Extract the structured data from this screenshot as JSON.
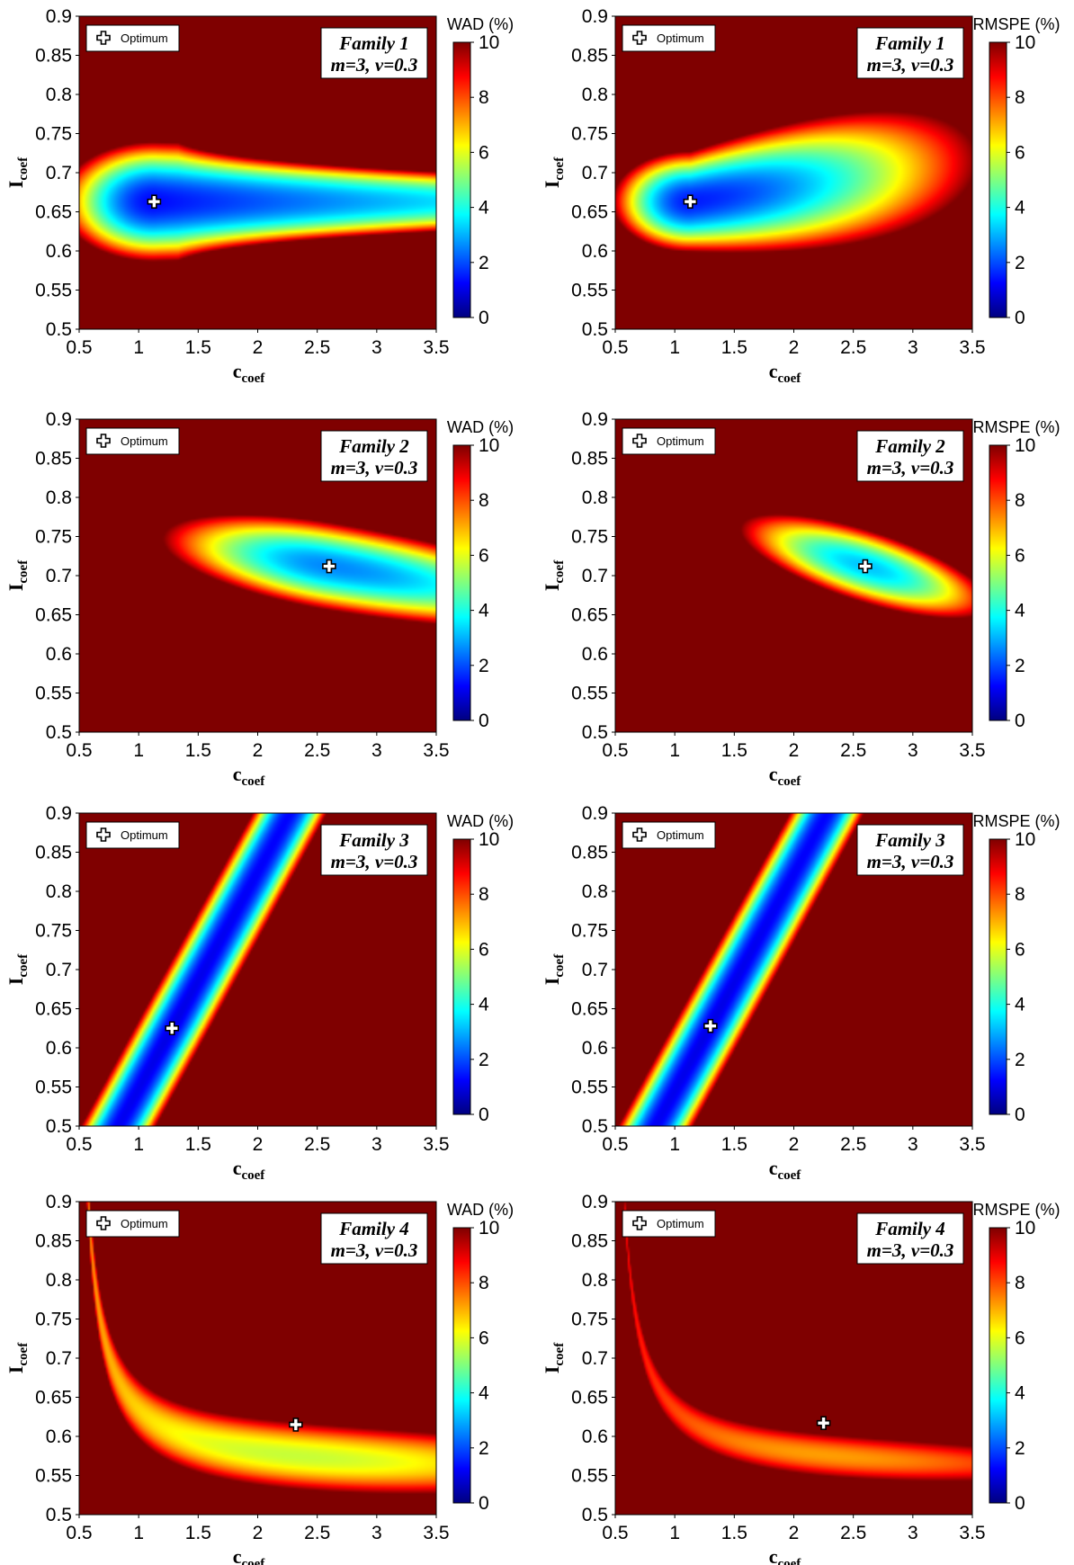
{
  "legend_label": "Optimum",
  "chart_data": [
    {
      "type": "heatmap",
      "family": "Family 1",
      "params": "m=3, v=0.3",
      "colorbar_title": "WAD (%)",
      "colorbar_ticks": [
        "0",
        "2",
        "4",
        "6",
        "8",
        "10"
      ],
      "colorbar_range": [
        0,
        10
      ],
      "xlabel": "c",
      "xlabel_sub": "coef",
      "ylabel": "I",
      "ylabel_sub": "coef",
      "xlim": [
        0.5,
        3.5
      ],
      "ylim": [
        0.5,
        0.9
      ],
      "xticks": [
        "0.5",
        "1",
        "1.5",
        "2",
        "2.5",
        "3",
        "3.5"
      ],
      "yticks": [
        "0.5",
        "0.55",
        "0.6",
        "0.65",
        "0.7",
        "0.75",
        "0.8",
        "0.85",
        "0.9"
      ],
      "optimum": {
        "x": 1.13,
        "y": 0.663
      },
      "valley": "ridge_h",
      "legend": "top-left",
      "cmap": [
        "#00007f",
        "#0000ff",
        "#007fff",
        "#00ffff",
        "#7fff7f",
        "#ffff00",
        "#ff7f00",
        "#ff0000",
        "#7f0000"
      ]
    },
    {
      "type": "heatmap",
      "family": "Family 1",
      "params": "m=3, v=0.3",
      "colorbar_title": "RMSPE (%)",
      "colorbar_ticks": [
        "0",
        "2",
        "4",
        "6",
        "8",
        "10"
      ],
      "colorbar_range": [
        0,
        10
      ],
      "xlabel": "c",
      "xlabel_sub": "coef",
      "ylabel": "I",
      "ylabel_sub": "coef",
      "xlim": [
        0.5,
        3.5
      ],
      "ylim": [
        0.5,
        0.9
      ],
      "xticks": [
        "0.5",
        "1",
        "1.5",
        "2",
        "2.5",
        "3",
        "3.5"
      ],
      "yticks": [
        "0.5",
        "0.55",
        "0.6",
        "0.65",
        "0.7",
        "0.75",
        "0.8",
        "0.85",
        "0.9"
      ],
      "optimum": {
        "x": 1.13,
        "y": 0.663
      },
      "valley": "teardrop",
      "legend": "top-left",
      "cmap": [
        "#00007f",
        "#0000ff",
        "#007fff",
        "#00ffff",
        "#7fff7f",
        "#ffff00",
        "#ff7f00",
        "#ff0000",
        "#7f0000"
      ]
    },
    {
      "type": "heatmap",
      "family": "Family 2",
      "params": "m=3, v=0.3",
      "colorbar_title": "WAD (%)",
      "colorbar_ticks": [
        "0",
        "2",
        "4",
        "6",
        "8",
        "10"
      ],
      "colorbar_range": [
        0,
        10
      ],
      "xlabel": "c",
      "xlabel_sub": "coef",
      "ylabel": "I",
      "ylabel_sub": "coef",
      "xlim": [
        0.5,
        3.5
      ],
      "ylim": [
        0.5,
        0.9
      ],
      "xticks": [
        "0.5",
        "1",
        "1.5",
        "2",
        "2.5",
        "3",
        "3.5"
      ],
      "yticks": [
        "0.5",
        "0.55",
        "0.6",
        "0.65",
        "0.7",
        "0.75",
        "0.8",
        "0.85",
        "0.9"
      ],
      "optimum": {
        "x": 2.6,
        "y": 0.712
      },
      "valley": "ellipse_wide",
      "legend": "top-left",
      "cmap": [
        "#00007f",
        "#0000ff",
        "#007fff",
        "#00ffff",
        "#7fff7f",
        "#ffff00",
        "#ff7f00",
        "#ff0000",
        "#7f0000"
      ]
    },
    {
      "type": "heatmap",
      "family": "Family 2",
      "params": "m=3, v=0.3",
      "colorbar_title": "RMSPE (%)",
      "colorbar_ticks": [
        "0",
        "2",
        "4",
        "6",
        "8",
        "10"
      ],
      "colorbar_range": [
        0,
        10
      ],
      "xlabel": "c",
      "xlabel_sub": "coef",
      "ylabel": "I",
      "ylabel_sub": "coef",
      "xlim": [
        0.5,
        3.5
      ],
      "ylim": [
        0.5,
        0.9
      ],
      "xticks": [
        "0.5",
        "1",
        "1.5",
        "2",
        "2.5",
        "3",
        "3.5"
      ],
      "yticks": [
        "0.5",
        "0.55",
        "0.6",
        "0.65",
        "0.7",
        "0.75",
        "0.8",
        "0.85",
        "0.9"
      ],
      "optimum": {
        "x": 2.6,
        "y": 0.712
      },
      "valley": "ellipse_small",
      "legend": "top-left",
      "cmap": [
        "#00007f",
        "#0000ff",
        "#007fff",
        "#00ffff",
        "#7fff7f",
        "#ffff00",
        "#ff7f00",
        "#ff0000",
        "#7f0000"
      ]
    },
    {
      "type": "heatmap",
      "family": "Family 3",
      "params": "m=3, v=0.3",
      "colorbar_title": "WAD (%)",
      "colorbar_ticks": [
        "0",
        "2",
        "4",
        "6",
        "8",
        "10"
      ],
      "colorbar_range": [
        0,
        10
      ],
      "xlabel": "c",
      "xlabel_sub": "coef",
      "ylabel": "I",
      "ylabel_sub": "coef",
      "xlim": [
        0.5,
        3.5
      ],
      "ylim": [
        0.5,
        0.9
      ],
      "xticks": [
        "0.5",
        "1",
        "1.5",
        "2",
        "2.5",
        "3",
        "3.5"
      ],
      "yticks": [
        "0.5",
        "0.55",
        "0.6",
        "0.65",
        "0.7",
        "0.75",
        "0.8",
        "0.85",
        "0.9"
      ],
      "optimum": {
        "x": 1.28,
        "y": 0.625
      },
      "valley": "band_diag",
      "legend": "top-left",
      "cmap": [
        "#00007f",
        "#0000ff",
        "#007fff",
        "#00ffff",
        "#7fff7f",
        "#ffff00",
        "#ff7f00",
        "#ff0000",
        "#7f0000"
      ]
    },
    {
      "type": "heatmap",
      "family": "Family 3",
      "params": "m=3, v=0.3",
      "colorbar_title": "RMSPE (%)",
      "colorbar_ticks": [
        "0",
        "2",
        "4",
        "6",
        "8",
        "10"
      ],
      "colorbar_range": [
        0,
        10
      ],
      "xlabel": "c",
      "xlabel_sub": "coef",
      "ylabel": "I",
      "ylabel_sub": "coef",
      "xlim": [
        0.5,
        3.5
      ],
      "ylim": [
        0.5,
        0.9
      ],
      "xticks": [
        "0.5",
        "1",
        "1.5",
        "2",
        "2.5",
        "3",
        "3.5"
      ],
      "yticks": [
        "0.5",
        "0.55",
        "0.6",
        "0.65",
        "0.7",
        "0.75",
        "0.8",
        "0.85",
        "0.9"
      ],
      "optimum": {
        "x": 1.3,
        "y": 0.628
      },
      "valley": "band_diag",
      "legend": "top-left",
      "cmap": [
        "#00007f",
        "#0000ff",
        "#007fff",
        "#00ffff",
        "#7fff7f",
        "#ffff00",
        "#ff7f00",
        "#ff0000",
        "#7f0000"
      ]
    },
    {
      "type": "heatmap",
      "family": "Family 4",
      "params": "m=3, v=0.3",
      "colorbar_title": "WAD (%)",
      "colorbar_ticks": [
        "0",
        "2",
        "4",
        "6",
        "8",
        "10"
      ],
      "colorbar_range": [
        0,
        10
      ],
      "xlabel": "c",
      "xlabel_sub": "coef",
      "ylabel": "I",
      "ylabel_sub": "coef",
      "xlim": [
        0.5,
        3.5
      ],
      "ylim": [
        0.5,
        0.9
      ],
      "xticks": [
        "0.5",
        "1",
        "1.5",
        "2",
        "2.5",
        "3",
        "3.5"
      ],
      "yticks": [
        "0.5",
        "0.55",
        "0.6",
        "0.65",
        "0.7",
        "0.75",
        "0.8",
        "0.85",
        "0.9"
      ],
      "optimum": {
        "x": 2.32,
        "y": 0.615
      },
      "valley": "hyperbola_wad",
      "legend": "top-left",
      "cmap": [
        "#00007f",
        "#0000ff",
        "#007fff",
        "#00ffff",
        "#7fff7f",
        "#ffff00",
        "#ff7f00",
        "#ff0000",
        "#7f0000"
      ]
    },
    {
      "type": "heatmap",
      "family": "Family 4",
      "params": "m=3, v=0.3",
      "colorbar_title": "RMSPE (%)",
      "colorbar_ticks": [
        "0",
        "2",
        "4",
        "6",
        "8",
        "10"
      ],
      "colorbar_range": [
        0,
        10
      ],
      "xlabel": "c",
      "xlabel_sub": "coef",
      "ylabel": "I",
      "ylabel_sub": "coef",
      "xlim": [
        0.5,
        3.5
      ],
      "ylim": [
        0.5,
        0.9
      ],
      "xticks": [
        "0.5",
        "1",
        "1.5",
        "2",
        "2.5",
        "3",
        "3.5"
      ],
      "yticks": [
        "0.5",
        "0.55",
        "0.6",
        "0.65",
        "0.7",
        "0.75",
        "0.8",
        "0.85",
        "0.9"
      ],
      "optimum": {
        "x": 2.25,
        "y": 0.617
      },
      "valley": "hyperbola_rmspe",
      "legend": "top-left",
      "cmap": [
        "#00007f",
        "#0000ff",
        "#007fff",
        "#00ffff",
        "#7fff7f",
        "#ffff00",
        "#ff7f00",
        "#ff0000",
        "#7f0000"
      ]
    }
  ]
}
